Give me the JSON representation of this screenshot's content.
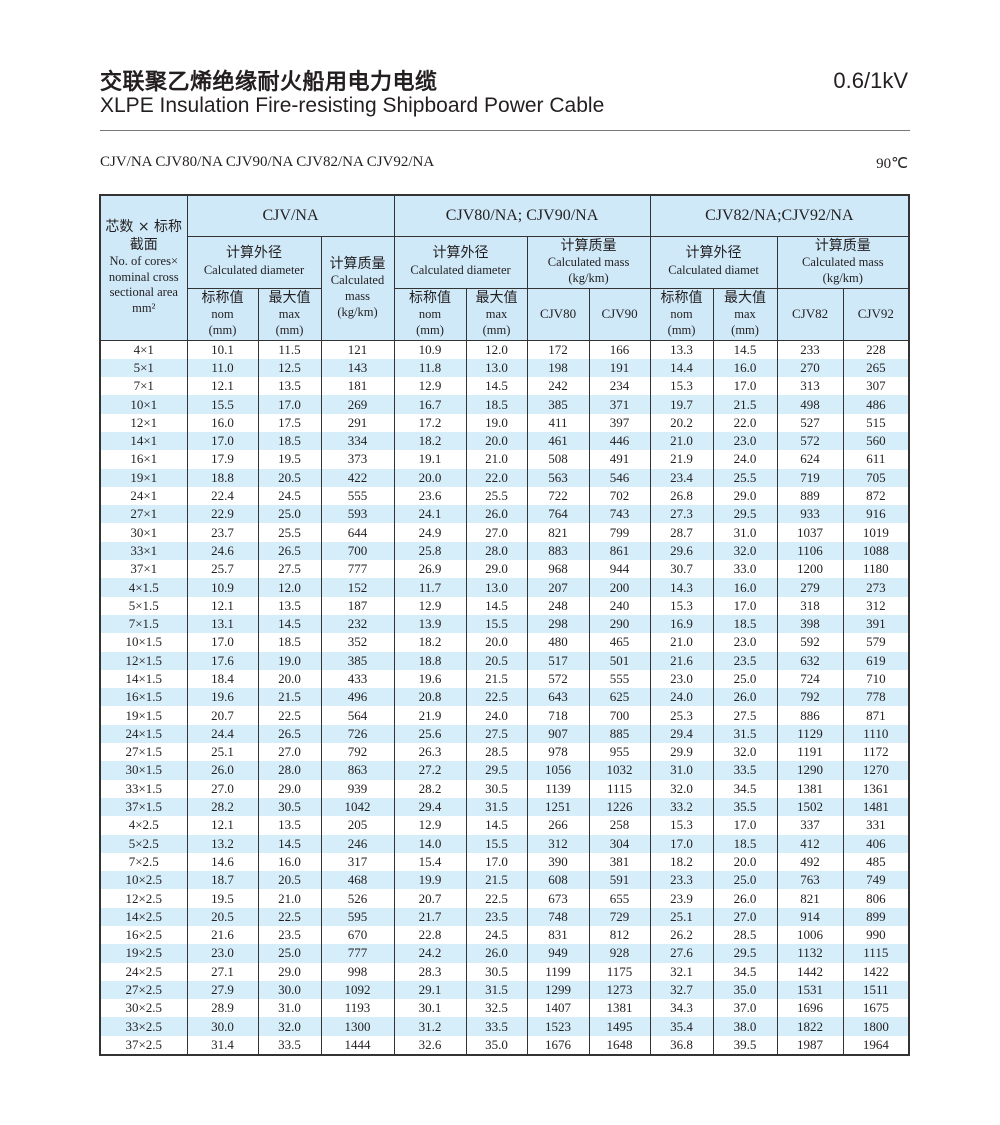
{
  "header": {
    "title_cn": "交联聚乙烯绝缘耐火船用电力电缆",
    "title_en": "XLPE Insulation Fire-resisting Shipboard Power Cable",
    "voltage": "0.6/1kV",
    "models": "CJV/NA  CJV80/NA  CJV90/NA  CJV82/NA  CJV92/NA",
    "temperature": "90℃"
  },
  "table": {
    "first_col": {
      "cn1": "芯数 × 标称",
      "cn2": "截面",
      "en1": "No. of cores×",
      "en2": "nominal cross",
      "en3": "sectional area",
      "unit": "mm²"
    },
    "groups": [
      "CJV/NA",
      "CJV80/NA; CJV90/NA",
      "CJV82/NA;CJV92/NA"
    ],
    "calc_diameter_cn": "计算外径",
    "calc_diameter_en": [
      "Calculated diameter",
      "Calculated diameter",
      "Calculated diamet"
    ],
    "calc_mass_cn": "计算质量",
    "calc_mass_en1": "Calculated",
    "calc_mass_en2": "mass",
    "calc_mass_en_full": "Calculated mass",
    "mass_unit": "(kg/km)",
    "nom_cn": "标称值",
    "nom_en": "nom",
    "max_cn": "最大值",
    "max_en": "max",
    "mm": "(mm)",
    "sub_cols": [
      "CJV80",
      "CJV90",
      "CJV82",
      "CJV92"
    ],
    "rows": [
      [
        "4×1",
        "10.1",
        "11.5",
        "121",
        "10.9",
        "12.0",
        "172",
        "166",
        "13.3",
        "14.5",
        "233",
        "228"
      ],
      [
        "5×1",
        "11.0",
        "12.5",
        "143",
        "11.8",
        "13.0",
        "198",
        "191",
        "14.4",
        "16.0",
        "270",
        "265"
      ],
      [
        "7×1",
        "12.1",
        "13.5",
        "181",
        "12.9",
        "14.5",
        "242",
        "234",
        "15.3",
        "17.0",
        "313",
        "307"
      ],
      [
        "10×1",
        "15.5",
        "17.0",
        "269",
        "16.7",
        "18.5",
        "385",
        "371",
        "19.7",
        "21.5",
        "498",
        "486"
      ],
      [
        "12×1",
        "16.0",
        "17.5",
        "291",
        "17.2",
        "19.0",
        "411",
        "397",
        "20.2",
        "22.0",
        "527",
        "515"
      ],
      [
        "14×1",
        "17.0",
        "18.5",
        "334",
        "18.2",
        "20.0",
        "461",
        "446",
        "21.0",
        "23.0",
        "572",
        "560"
      ],
      [
        "16×1",
        "17.9",
        "19.5",
        "373",
        "19.1",
        "21.0",
        "508",
        "491",
        "21.9",
        "24.0",
        "624",
        "611"
      ],
      [
        "19×1",
        "18.8",
        "20.5",
        "422",
        "20.0",
        "22.0",
        "563",
        "546",
        "23.4",
        "25.5",
        "719",
        "705"
      ],
      [
        "24×1",
        "22.4",
        "24.5",
        "555",
        "23.6",
        "25.5",
        "722",
        "702",
        "26.8",
        "29.0",
        "889",
        "872"
      ],
      [
        "27×1",
        "22.9",
        "25.0",
        "593",
        "24.1",
        "26.0",
        "764",
        "743",
        "27.3",
        "29.5",
        "933",
        "916"
      ],
      [
        "30×1",
        "23.7",
        "25.5",
        "644",
        "24.9",
        "27.0",
        "821",
        "799",
        "28.7",
        "31.0",
        "1037",
        "1019"
      ],
      [
        "33×1",
        "24.6",
        "26.5",
        "700",
        "25.8",
        "28.0",
        "883",
        "861",
        "29.6",
        "32.0",
        "1106",
        "1088"
      ],
      [
        "37×1",
        "25.7",
        "27.5",
        "777",
        "26.9",
        "29.0",
        "968",
        "944",
        "30.7",
        "33.0",
        "1200",
        "1180"
      ],
      [
        "4×1.5",
        "10.9",
        "12.0",
        "152",
        "11.7",
        "13.0",
        "207",
        "200",
        "14.3",
        "16.0",
        "279",
        "273"
      ],
      [
        "5×1.5",
        "12.1",
        "13.5",
        "187",
        "12.9",
        "14.5",
        "248",
        "240",
        "15.3",
        "17.0",
        "318",
        "312"
      ],
      [
        "7×1.5",
        "13.1",
        "14.5",
        "232",
        "13.9",
        "15.5",
        "298",
        "290",
        "16.9",
        "18.5",
        "398",
        "391"
      ],
      [
        "10×1.5",
        "17.0",
        "18.5",
        "352",
        "18.2",
        "20.0",
        "480",
        "465",
        "21.0",
        "23.0",
        "592",
        "579"
      ],
      [
        "12×1.5",
        "17.6",
        "19.0",
        "385",
        "18.8",
        "20.5",
        "517",
        "501",
        "21.6",
        "23.5",
        "632",
        "619"
      ],
      [
        "14×1.5",
        "18.4",
        "20.0",
        "433",
        "19.6",
        "21.5",
        "572",
        "555",
        "23.0",
        "25.0",
        "724",
        "710"
      ],
      [
        "16×1.5",
        "19.6",
        "21.5",
        "496",
        "20.8",
        "22.5",
        "643",
        "625",
        "24.0",
        "26.0",
        "792",
        "778"
      ],
      [
        "19×1.5",
        "20.7",
        "22.5",
        "564",
        "21.9",
        "24.0",
        "718",
        "700",
        "25.3",
        "27.5",
        "886",
        "871"
      ],
      [
        "24×1.5",
        "24.4",
        "26.5",
        "726",
        "25.6",
        "27.5",
        "907",
        "885",
        "29.4",
        "31.5",
        "1129",
        "1110"
      ],
      [
        "27×1.5",
        "25.1",
        "27.0",
        "792",
        "26.3",
        "28.5",
        "978",
        "955",
        "29.9",
        "32.0",
        "1191",
        "1172"
      ],
      [
        "30×1.5",
        "26.0",
        "28.0",
        "863",
        "27.2",
        "29.5",
        "1056",
        "1032",
        "31.0",
        "33.5",
        "1290",
        "1270"
      ],
      [
        "33×1.5",
        "27.0",
        "29.0",
        "939",
        "28.2",
        "30.5",
        "1139",
        "1115",
        "32.0",
        "34.5",
        "1381",
        "1361"
      ],
      [
        "37×1.5",
        "28.2",
        "30.5",
        "1042",
        "29.4",
        "31.5",
        "1251",
        "1226",
        "33.2",
        "35.5",
        "1502",
        "1481"
      ],
      [
        "4×2.5",
        "12.1",
        "13.5",
        "205",
        "12.9",
        "14.5",
        "266",
        "258",
        "15.3",
        "17.0",
        "337",
        "331"
      ],
      [
        "5×2.5",
        "13.2",
        "14.5",
        "246",
        "14.0",
        "15.5",
        "312",
        "304",
        "17.0",
        "18.5",
        "412",
        "406"
      ],
      [
        "7×2.5",
        "14.6",
        "16.0",
        "317",
        "15.4",
        "17.0",
        "390",
        "381",
        "18.2",
        "20.0",
        "492",
        "485"
      ],
      [
        "10×2.5",
        "18.7",
        "20.5",
        "468",
        "19.9",
        "21.5",
        "608",
        "591",
        "23.3",
        "25.0",
        "763",
        "749"
      ],
      [
        "12×2.5",
        "19.5",
        "21.0",
        "526",
        "20.7",
        "22.5",
        "673",
        "655",
        "23.9",
        "26.0",
        "821",
        "806"
      ],
      [
        "14×2.5",
        "20.5",
        "22.5",
        "595",
        "21.7",
        "23.5",
        "748",
        "729",
        "25.1",
        "27.0",
        "914",
        "899"
      ],
      [
        "16×2.5",
        "21.6",
        "23.5",
        "670",
        "22.8",
        "24.5",
        "831",
        "812",
        "26.2",
        "28.5",
        "1006",
        "990"
      ],
      [
        "19×2.5",
        "23.0",
        "25.0",
        "777",
        "24.2",
        "26.0",
        "949",
        "928",
        "27.6",
        "29.5",
        "1132",
        "1115"
      ],
      [
        "24×2.5",
        "27.1",
        "29.0",
        "998",
        "28.3",
        "30.5",
        "1199",
        "1175",
        "32.1",
        "34.5",
        "1442",
        "1422"
      ],
      [
        "27×2.5",
        "27.9",
        "30.0",
        "1092",
        "29.1",
        "31.5",
        "1299",
        "1273",
        "32.7",
        "35.0",
        "1531",
        "1511"
      ],
      [
        "30×2.5",
        "28.9",
        "31.0",
        "1193",
        "30.1",
        "32.5",
        "1407",
        "1381",
        "34.3",
        "37.0",
        "1696",
        "1675"
      ],
      [
        "33×2.5",
        "30.0",
        "32.0",
        "1300",
        "31.2",
        "33.5",
        "1523",
        "1495",
        "35.4",
        "38.0",
        "1822",
        "1800"
      ],
      [
        "37×2.5",
        "31.4",
        "33.5",
        "1444",
        "32.6",
        "35.0",
        "1676",
        "1648",
        "36.8",
        "39.5",
        "1987",
        "1964"
      ]
    ]
  },
  "colors": {
    "header_bg": "#cfe9f8",
    "stripe_bg": "#d6eefa",
    "text": "#231f20"
  }
}
